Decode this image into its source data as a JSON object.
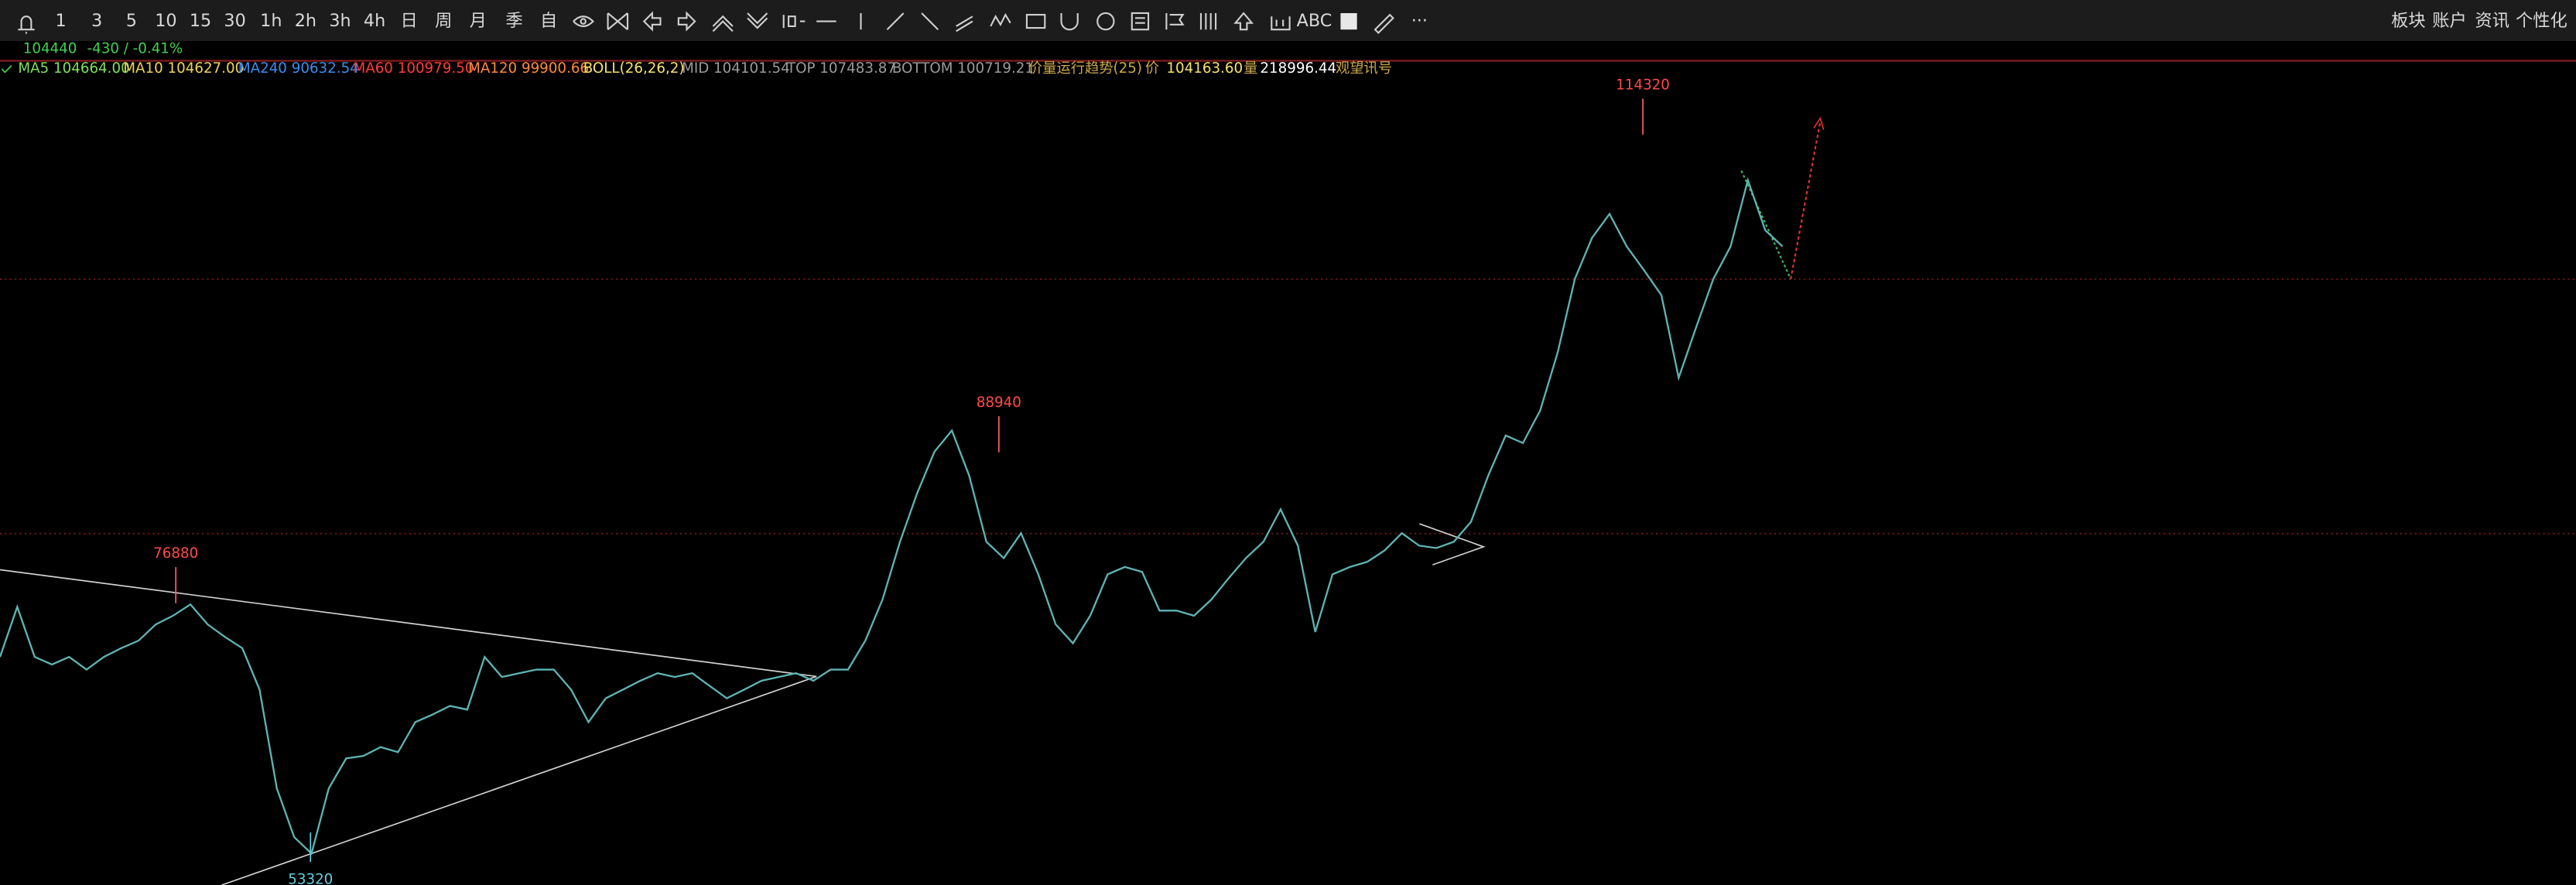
{
  "toolbar": {
    "periods": [
      "1",
      "3",
      "5",
      "10",
      "15",
      "30",
      "1h",
      "2h",
      "3h",
      "4h",
      "日",
      "周",
      "月",
      "季",
      "自"
    ],
    "text_tool": "ABC",
    "more": "···",
    "menu": [
      "板块",
      "账户",
      "资讯",
      "个性化"
    ]
  },
  "quote": {
    "price": "104440",
    "change": "-430 / -0.41%"
  },
  "indicators": [
    {
      "text": "MA5 104664.00",
      "color": "#7ee05a"
    },
    {
      "text": "MA10 104627.00",
      "color": "#f0d35a"
    },
    {
      "text": "MA240 90632.54",
      "color": "#3a8ef0"
    },
    {
      "text": "MA60 100979.50",
      "color": "#ff3b3b"
    },
    {
      "text": "MA120 99900.66",
      "color": "#ff8a3a"
    },
    {
      "text": "BOLL(26,26,2)",
      "color": "#f5e46a"
    },
    {
      "text": "MID 104101.54",
      "color": "#9a9a9a"
    },
    {
      "text": "TOP 107483.87",
      "color": "#9a9a9a"
    },
    {
      "text": "BOTTOM 100719.21",
      "color": "#9a9a9a"
    },
    {
      "text": "价量运行趋势(25)",
      "color": "#c9a84a"
    },
    {
      "text": "价",
      "color": "#c9a84a"
    },
    {
      "text": "104163.60",
      "color": "#f5e46a"
    },
    {
      "text": "量",
      "color": "#c9a84a"
    },
    {
      "text": "218996.44",
      "color": "#ffffff"
    },
    {
      "text": "观望讯号",
      "color": "#c9a84a"
    }
  ],
  "chart_data": {
    "type": "line",
    "color": "#5fb3b3",
    "values": [
      69700,
      73700,
      69700,
      69100,
      69700,
      68700,
      69700,
      70400,
      71000,
      72300,
      73000,
      73900,
      72300,
      71300,
      70400,
      67100,
      59200,
      55300,
      54000,
      59200,
      61600,
      61800,
      62500,
      62100,
      64500,
      65100,
      65800,
      65500,
      69700,
      68100,
      68400,
      68700,
      68700,
      67100,
      64500,
      66400,
      67100,
      67800,
      68400,
      68100,
      68400,
      67400,
      66400,
      67100,
      67800,
      68100,
      68400,
      67800,
      68700,
      68700,
      71000,
      74300,
      78900,
      82800,
      86100,
      87800,
      84200,
      78900,
      77600,
      79600,
      76300,
      72300,
      70800,
      73000,
      76300,
      76900,
      76500,
      73400,
      73400,
      73000,
      74300,
      76000,
      77600,
      78900,
      81500,
      78600,
      71700,
      76300,
      76900,
      77300,
      78200,
      79600,
      78600,
      78400,
      78900,
      80500,
      84200,
      87400,
      86800,
      89400,
      94000,
      99900,
      103200,
      105100,
      102500,
      100600,
      98600,
      92000,
      96000,
      99900,
      102500,
      107800,
      103800,
      102500
    ],
    "annotations": [
      {
        "value": 76880,
        "color": "#ff4a4a"
      },
      {
        "value": 88940,
        "color": "#ff4a4a"
      },
      {
        "value": 114320,
        "color": "#ff4a4a"
      },
      {
        "value": 53320,
        "color": "#5fd0e0"
      }
    ]
  }
}
